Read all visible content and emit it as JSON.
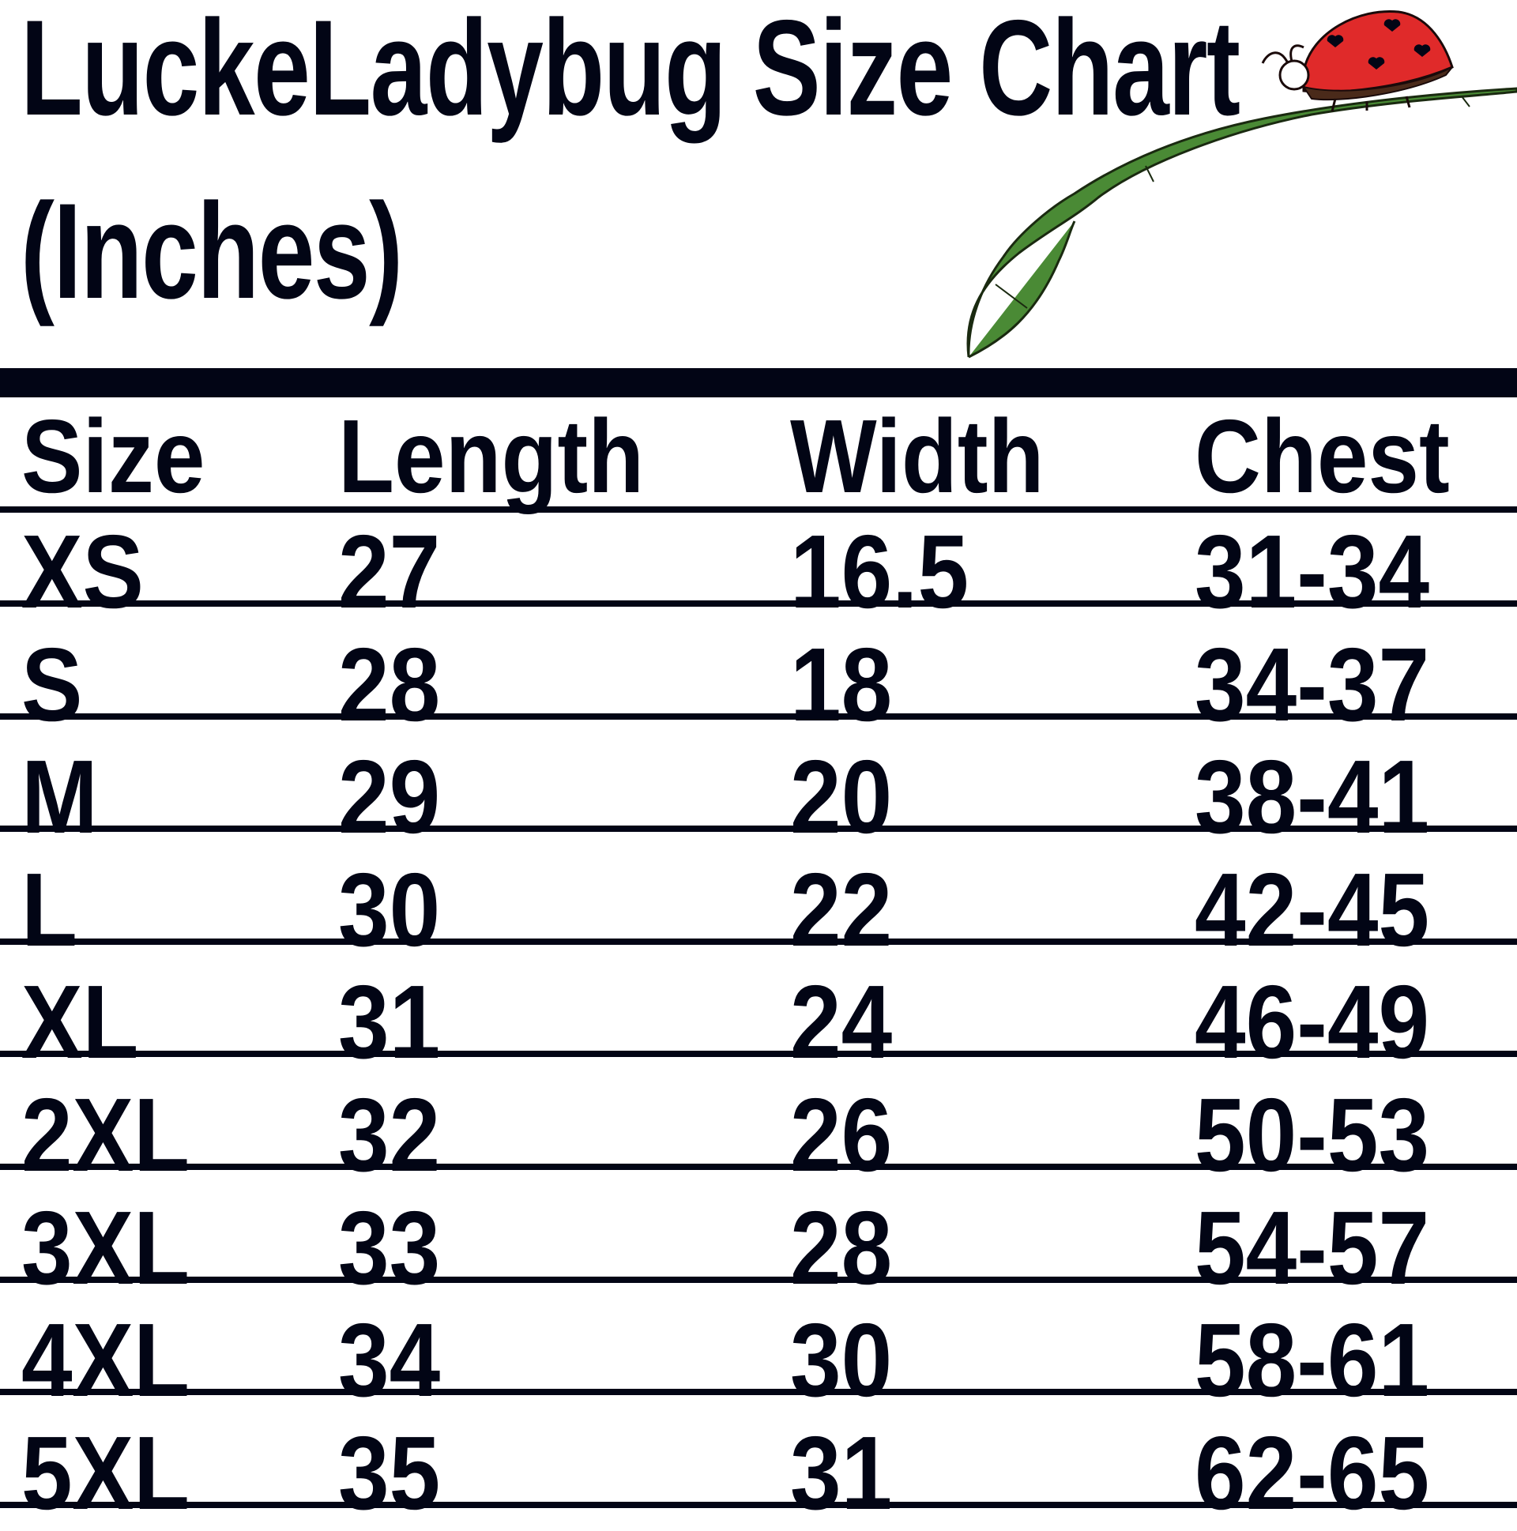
{
  "title": {
    "line1": "LuckeLadybug Size Chart",
    "line2": "(Inches)"
  },
  "colors": {
    "text": "#020515",
    "ladybug": "#e02a2a",
    "leaf": "#4a8a35"
  },
  "illustration": "ladybug-on-leaf",
  "table": {
    "headers": [
      "Size",
      "Length",
      "Width",
      "Chest"
    ],
    "rows": [
      [
        "XS",
        "27",
        "16.5",
        "31-34"
      ],
      [
        "S",
        "28",
        "18",
        "34-37"
      ],
      [
        "M",
        "29",
        "20",
        "38-41"
      ],
      [
        "L",
        "30",
        "22",
        "42-45"
      ],
      [
        "XL",
        "31",
        "24",
        "46-49"
      ],
      [
        "2XL",
        "32",
        "26",
        "50-53"
      ],
      [
        "3XL",
        "33",
        "28",
        "54-57"
      ],
      [
        "4XL",
        "34",
        "30",
        "58-61"
      ],
      [
        "5XL",
        "35",
        "31",
        "62-65"
      ]
    ]
  }
}
